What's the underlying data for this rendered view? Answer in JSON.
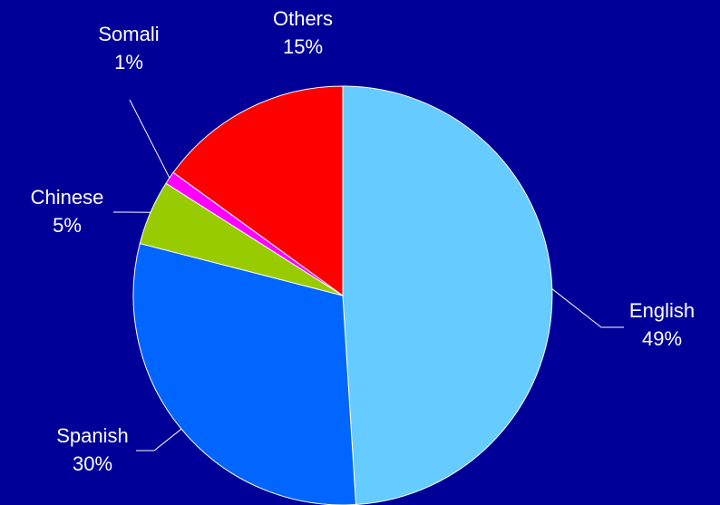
{
  "background_color": "#000099",
  "chart_data": {
    "type": "pie",
    "title": "",
    "slices": [
      {
        "name": "English",
        "value": 49,
        "label": "49%",
        "color": "#66ccff"
      },
      {
        "name": "Spanish",
        "value": 30,
        "label": "30%",
        "color": "#0066ff"
      },
      {
        "name": "Chinese",
        "value": 5,
        "label": "5%",
        "color": "#99cc00"
      },
      {
        "name": "Somali",
        "value": 1,
        "label": "1%",
        "color": "#ff00ff"
      },
      {
        "name": "Others",
        "value": 15,
        "label": "15%",
        "color": "#ff0000"
      }
    ],
    "start_angle": "12 o'clock",
    "direction": "clockwise",
    "data_labels": "category name and percentage, outside with leader lines"
  }
}
